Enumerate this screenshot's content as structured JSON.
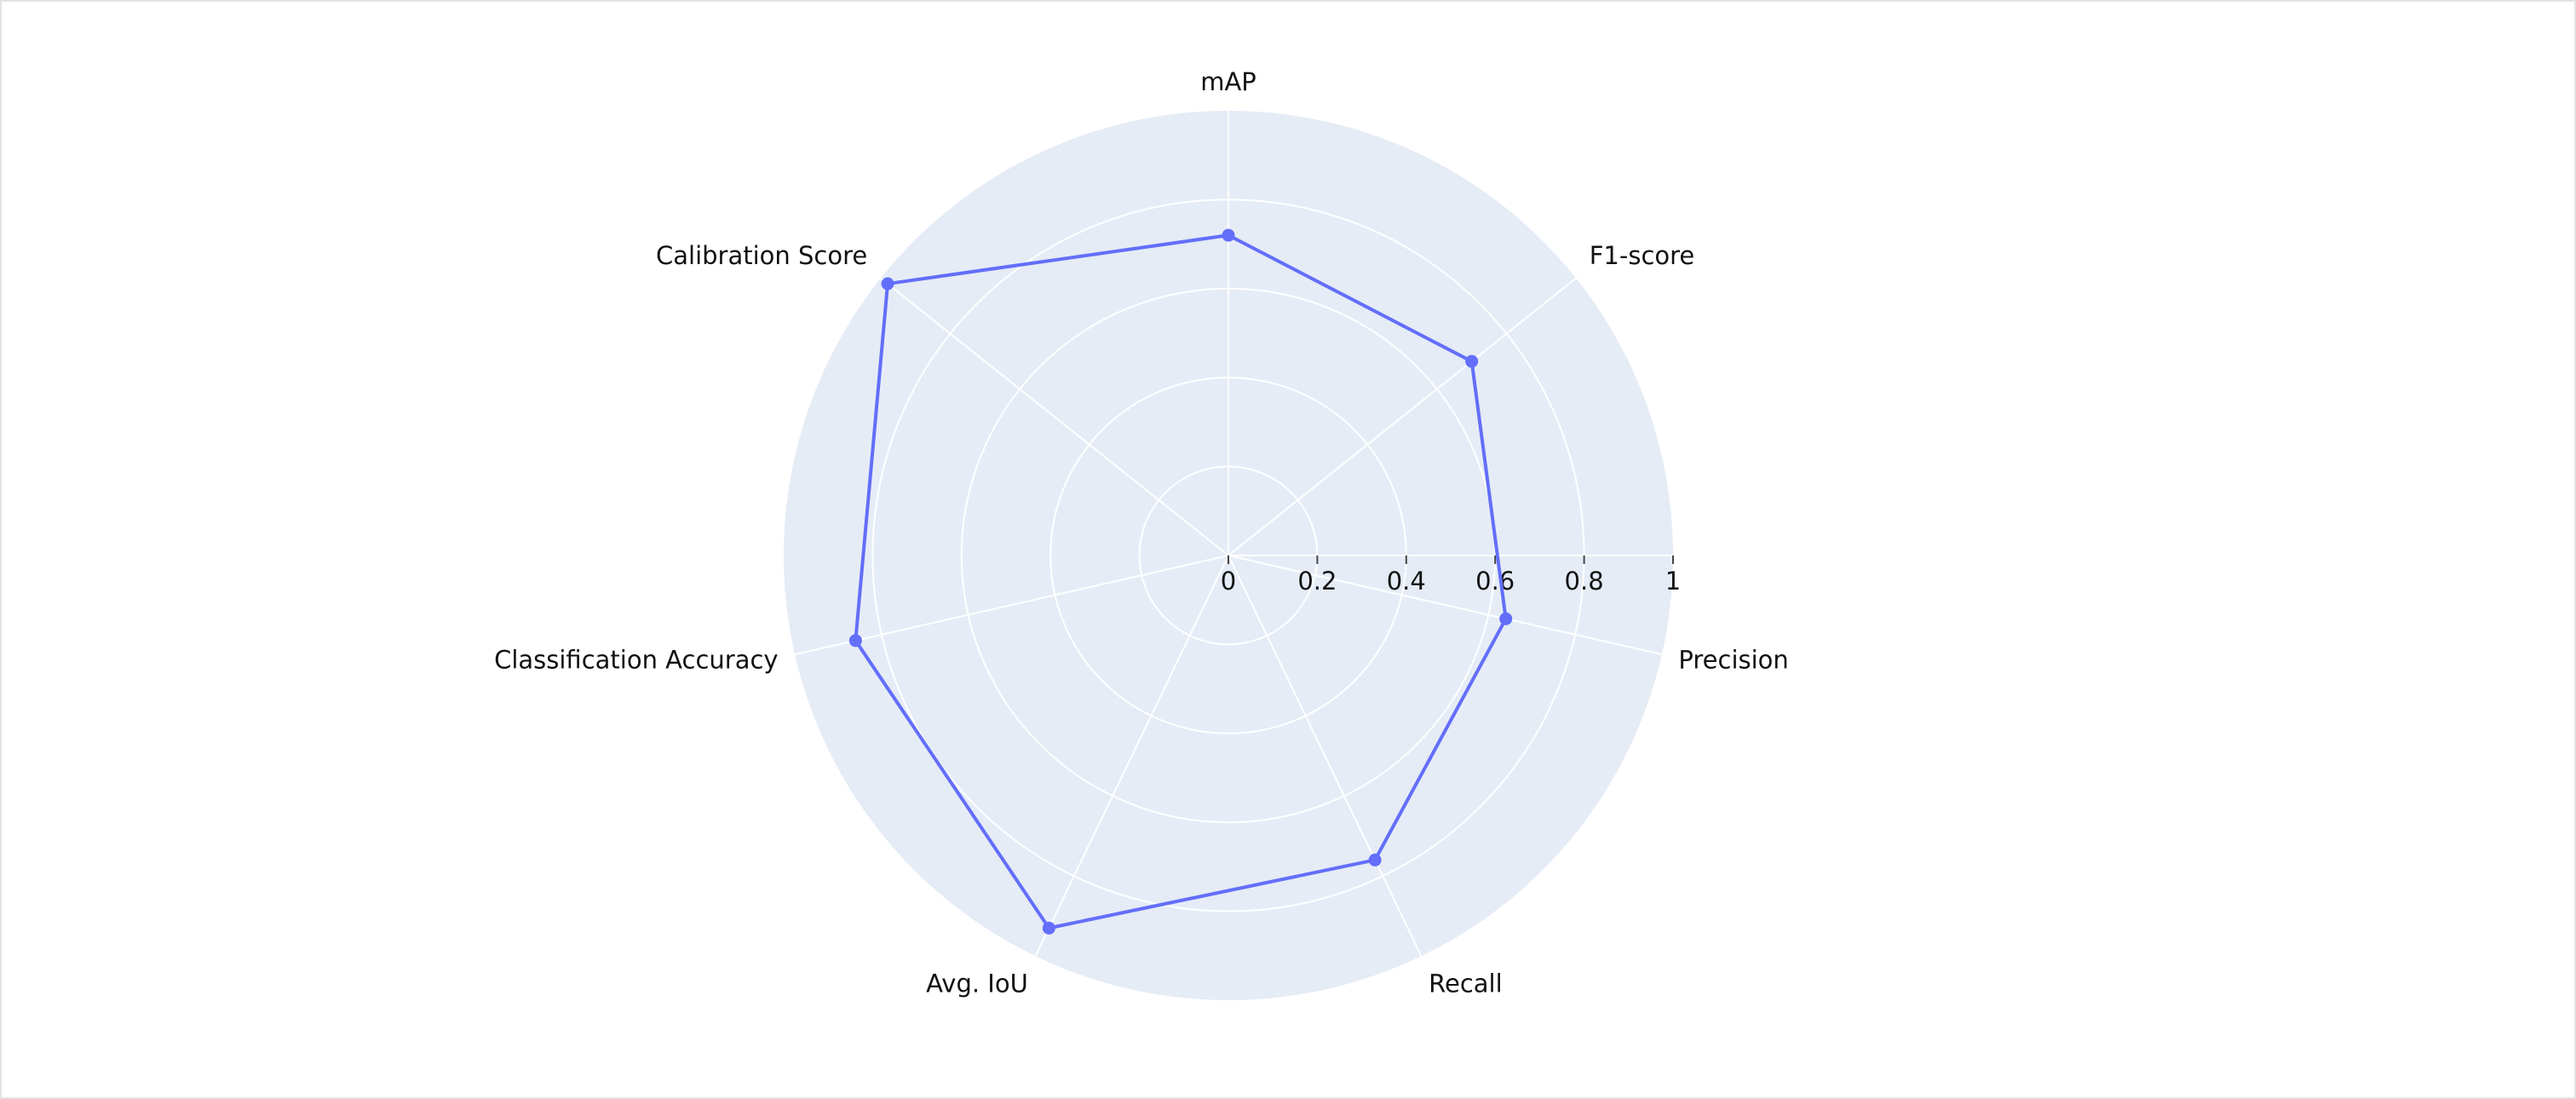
{
  "chart_data": {
    "type": "radar",
    "axes": [
      "mAP",
      "F1-score",
      "Precision",
      "Recall",
      "Avg. IoU",
      "Classification Accuracy",
      "Calibration Score"
    ],
    "series": [
      {
        "values": [
          0.72,
          0.7,
          0.64,
          0.76,
          0.93,
          0.86,
          0.98
        ]
      }
    ],
    "radial_range": [
      0,
      1
    ],
    "radial_ticks": [
      "0",
      "0.2",
      "0.4",
      "0.6",
      "0.8",
      "1"
    ],
    "grid": true,
    "legend": "none",
    "colors": {
      "series": "#636efa",
      "background": "#e5ecf6",
      "grid": "#ffffff",
      "text": "#111111"
    }
  }
}
